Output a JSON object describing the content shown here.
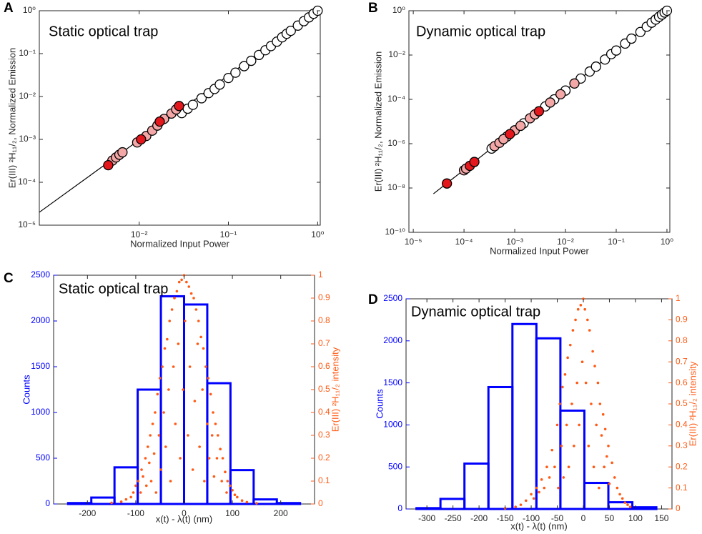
{
  "chart_data": [
    {
      "type": "scatter",
      "panel": "A",
      "annotation": "Static optical trap",
      "xlabel": "Normalized Input Power",
      "ylabel": "Er(III) ²H₁₁/₂, Normalized Emission",
      "xscale": "log",
      "yscale": "log",
      "xlim": [
        0.00076,
        1.07
      ],
      "ylim": [
        1e-05,
        1
      ],
      "xticks": [
        {
          "value": 0.01,
          "label": "10⁻²"
        },
        {
          "value": 0.1,
          "label": "10⁻¹"
        },
        {
          "value": 1,
          "label": "10⁰"
        }
      ],
      "yticks": [
        {
          "value": 1e-05,
          "label": "10⁻⁵"
        },
        {
          "value": 0.0001,
          "label": "10⁻⁴"
        },
        {
          "value": 0.001,
          "label": "10⁻³"
        },
        {
          "value": 0.01,
          "label": "10⁻²"
        },
        {
          "value": 0.1,
          "label": "10⁻¹"
        },
        {
          "value": 1,
          "label": "10⁰"
        }
      ],
      "edgecolor": "#000000",
      "line": {
        "color": "#000000",
        "x": [
          0.00076,
          1
        ],
        "values": [
          2e-05,
          1
        ]
      },
      "series": [
        {
          "color": "#ffffff",
          "x": [
            0.03,
            0.035,
            0.04,
            0.05,
            0.06,
            0.07,
            0.08,
            0.1,
            0.12,
            0.15,
            0.18,
            0.22,
            0.26,
            0.3,
            0.35,
            0.4,
            0.45,
            0.5,
            0.6,
            0.7,
            0.8,
            0.9,
            1.0
          ],
          "values": [
            0.0041,
            0.0052,
            0.0064,
            0.0091,
            0.012,
            0.015,
            0.019,
            0.027,
            0.036,
            0.051,
            0.068,
            0.093,
            0.12,
            0.15,
            0.19,
            0.24,
            0.29,
            0.34,
            0.45,
            0.57,
            0.7,
            0.85,
            1.0
          ]
        },
        {
          "color": "#f4a7a7",
          "x": [
            0.005,
            0.0055,
            0.006,
            0.0065,
            0.0095,
            0.012,
            0.014,
            0.016,
            0.019,
            0.023,
            0.026
          ],
          "values": [
            0.00032,
            0.00038,
            0.00044,
            0.0005,
            0.00085,
            0.0012,
            0.0016,
            0.0021,
            0.003,
            0.004,
            0.005
          ]
        },
        {
          "color": "#e3171c",
          "x": [
            0.0045,
            0.0105,
            0.017,
            0.028
          ],
          "values": [
            0.00025,
            0.001,
            0.0026,
            0.006
          ]
        }
      ]
    },
    {
      "type": "scatter",
      "panel": "B",
      "annotation": "Dynamic optical trap",
      "xlabel": "Normalized Input Power",
      "ylabel": "Er(III) ²H₁₁/₂, Normalized Emission",
      "xscale": "log",
      "yscale": "log",
      "xlim": [
        8.2e-06,
        1.14
      ],
      "ylim": [
        1e-10,
        1
      ],
      "xticks": [
        {
          "value": 1e-05,
          "label": "10⁻⁵"
        },
        {
          "value": 0.0001,
          "label": "10⁻⁴"
        },
        {
          "value": 0.001,
          "label": "10⁻³"
        },
        {
          "value": 0.01,
          "label": "10⁻²"
        },
        {
          "value": 0.1,
          "label": "10⁻¹"
        },
        {
          "value": 1,
          "label": "10⁰"
        }
      ],
      "yticks": [
        {
          "value": 1e-10,
          "label": "10⁻¹⁰"
        },
        {
          "value": 1e-08,
          "label": "10⁻⁸"
        },
        {
          "value": 1e-06,
          "label": "10⁻⁶"
        },
        {
          "value": 0.0001,
          "label": "10⁻⁴"
        },
        {
          "value": 0.01,
          "label": "10⁻²"
        },
        {
          "value": 1,
          "label": "10⁰"
        }
      ],
      "edgecolor": "#000000",
      "line": {
        "color": "#000000",
        "x": [
          2.5e-05,
          1
        ],
        "values": [
          5.5e-09,
          1
        ]
      },
      "series": [
        {
          "color": "#ffffff",
          "x": [
            0.00035,
            0.0007,
            0.0015,
            0.004,
            0.006,
            0.01,
            0.02,
            0.03,
            0.04,
            0.06,
            0.08,
            0.1,
            0.15,
            0.2,
            0.3,
            0.4,
            0.5,
            0.6,
            0.7,
            0.8,
            0.9,
            1.0
          ],
          "values": [
            6e-07,
            2.1e-06,
            8.3e-06,
            4.8e-05,
            0.0001,
            0.00025,
            0.00087,
            0.0018,
            0.003,
            0.0063,
            0.011,
            0.016,
            0.033,
            0.055,
            0.11,
            0.19,
            0.29,
            0.4,
            0.53,
            0.67,
            0.83,
            1.0
          ]
        },
        {
          "color": "#f4a7a7",
          "x": [
            0.0001,
            0.00011,
            0.0004,
            0.0005,
            0.0006,
            0.001,
            0.0013,
            0.002,
            0.0025,
            0.005,
            0.008,
            0.015
          ],
          "values": [
            6.3e-08,
            7.5e-08,
            7.7e-07,
            1.1e-06,
            1.6e-06,
            4e-06,
            6.4e-06,
            1.4e-05,
            2.1e-05,
            7.2e-05,
            0.00017,
            0.00052
          ]
        },
        {
          "color": "#e3171c",
          "x": [
            4.6e-05,
            0.00013,
            0.00016,
            0.0008,
            0.003
          ],
          "values": [
            1.6e-08,
            1e-07,
            1.5e-07,
            2.7e-06,
            2.9e-05
          ]
        }
      ]
    },
    {
      "type": "histogram",
      "panel": "C",
      "annotation": "Static optical trap",
      "xlabel": "x(t) - λ(t) (nm)",
      "ylabel": "Counts",
      "y2label": "Er(III) ²H₁₁/₂ intensity",
      "xlim": [
        -270,
        270
      ],
      "ylim": [
        0,
        2500
      ],
      "y2lim": [
        0,
        1
      ],
      "xticks": [
        -200,
        -100,
        0,
        100,
        200
      ],
      "yticks": [
        0,
        500,
        1000,
        1500,
        2000,
        2500
      ],
      "y2ticks": [
        0,
        0.1,
        0.2,
        0.3,
        0.4,
        0.5,
        0.6,
        0.7,
        0.8,
        0.9,
        1
      ],
      "color": "#0000ff",
      "bins": [
        -240,
        -192,
        -144,
        -96,
        -48,
        0,
        48,
        96,
        144,
        192,
        240
      ],
      "values": [
        10,
        70,
        400,
        1250,
        2270,
        2180,
        1320,
        370,
        50,
        10
      ],
      "series": [
        {
          "type": "scatter",
          "axis": "y2",
          "color": "#ff5a14",
          "x": [
            -150,
            -130,
            -120,
            -110,
            -105,
            -100,
            -95,
            -90,
            -88,
            -85,
            -80,
            -78,
            -75,
            -72,
            -70,
            -68,
            -65,
            -62,
            -60,
            -58,
            -55,
            -52,
            -50,
            -48,
            -45,
            -42,
            -40,
            -38,
            -35,
            -32,
            -30,
            -28,
            -25,
            -22,
            -20,
            -18,
            -15,
            -12,
            -10,
            -8,
            -5,
            -2,
            0,
            2,
            5,
            8,
            10,
            12,
            15,
            18,
            20,
            22,
            25,
            28,
            30,
            32,
            35,
            38,
            40,
            42,
            45,
            48,
            50,
            52,
            55,
            58,
            60,
            62,
            65,
            68,
            70,
            75,
            78,
            80,
            85,
            88,
            90,
            95,
            100,
            105,
            110,
            120,
            130,
            150
          ],
          "values": [
            0.005,
            0.01,
            0.02,
            0.03,
            0.05,
            0.08,
            0.1,
            0.05,
            0.15,
            0.12,
            0.2,
            0.08,
            0.25,
            0.18,
            0.3,
            0.1,
            0.35,
            0.22,
            0.4,
            0.05,
            0.48,
            0.3,
            0.55,
            0.15,
            0.6,
            0.4,
            0.68,
            0.25,
            0.72,
            0.5,
            0.8,
            0.1,
            0.85,
            0.6,
            0.9,
            0.35,
            0.93,
            0.7,
            0.97,
            0.2,
            0.98,
            0.5,
            1.0,
            0.8,
            0.97,
            0.3,
            0.95,
            0.6,
            0.92,
            0.15,
            0.9,
            0.45,
            0.85,
            0.7,
            0.8,
            0.25,
            0.73,
            0.5,
            0.68,
            0.1,
            0.6,
            0.35,
            0.55,
            0.2,
            0.48,
            0.3,
            0.4,
            0.12,
            0.35,
            0.2,
            0.3,
            0.24,
            0.1,
            0.2,
            0.14,
            0.05,
            0.1,
            0.08,
            0.06,
            0.04,
            0.03,
            0.015,
            0.008,
            0.003
          ]
        }
      ]
    },
    {
      "type": "histogram",
      "panel": "D",
      "annotation": "Dynamic optical trap",
      "xlabel": "x(t) - λ(t) (nm)",
      "ylabel": "Counts",
      "y2label": "Er(III) ²H₁₁/₂ intensity",
      "xlim": [
        -340,
        170
      ],
      "ylim": [
        0,
        2500
      ],
      "y2lim": [
        0,
        1
      ],
      "xticks": [
        -300,
        -250,
        -200,
        -150,
        -100,
        -50,
        0,
        50,
        100,
        150
      ],
      "yticks": [
        0,
        500,
        1000,
        1500,
        2000,
        2500
      ],
      "y2ticks": [
        0,
        0.1,
        0.2,
        0.3,
        0.4,
        0.5,
        0.6,
        0.7,
        0.8,
        0.9,
        1
      ],
      "color": "#0000ff",
      "bins": [
        -320,
        -274,
        -228,
        -182,
        -136,
        -90,
        -44,
        2,
        48,
        94,
        140
      ],
      "values": [
        10,
        120,
        540,
        1450,
        2200,
        2030,
        1170,
        310,
        80,
        20
      ],
      "series": [
        {
          "type": "scatter",
          "axis": "y2",
          "color": "#ff5a14",
          "x": [
            -150,
            -130,
            -120,
            -110,
            -100,
            -95,
            -90,
            -85,
            -80,
            -75,
            -70,
            -65,
            -60,
            -55,
            -50,
            -48,
            -45,
            -42,
            -40,
            -38,
            -35,
            -32,
            -30,
            -28,
            -25,
            -22,
            -20,
            -18,
            -15,
            -12,
            -10,
            -8,
            -5,
            -2,
            0,
            3,
            5,
            8,
            10,
            12,
            15,
            18,
            20,
            22,
            25,
            28,
            30,
            32,
            35,
            38,
            40,
            42,
            45,
            48,
            50,
            55,
            60,
            65,
            70,
            75,
            80,
            85,
            90
          ],
          "values": [
            0.003,
            0.01,
            0.02,
            0.04,
            0.07,
            0.05,
            0.1,
            0.08,
            0.14,
            0.1,
            0.2,
            0.15,
            0.28,
            0.2,
            0.4,
            0.1,
            0.5,
            0.3,
            0.58,
            0.15,
            0.64,
            0.4,
            0.72,
            0.2,
            0.78,
            0.5,
            0.85,
            0.3,
            0.9,
            0.6,
            0.95,
            0.4,
            0.97,
            0.7,
            1.0,
            0.95,
            0.6,
            0.9,
            0.3,
            0.85,
            0.5,
            0.75,
            0.2,
            0.68,
            0.4,
            0.6,
            0.1,
            0.5,
            0.35,
            0.45,
            0.2,
            0.38,
            0.25,
            0.3,
            0.12,
            0.22,
            0.15,
            0.1,
            0.07,
            0.05,
            0.03,
            0.02,
            0.01
          ]
        }
      ]
    }
  ]
}
